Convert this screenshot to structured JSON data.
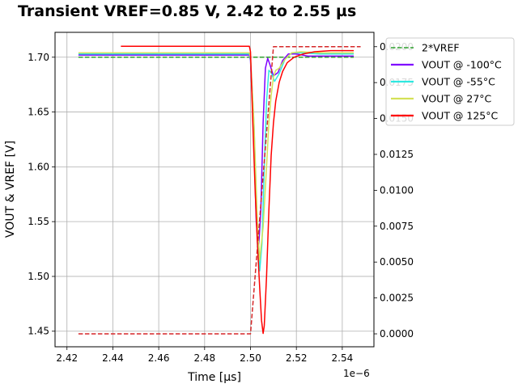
{
  "chart_data": {
    "type": "line",
    "title": "Transient VREF=0.85 V, 2.42 to 2.55 µs",
    "xlabel": "Time [µs]",
    "ylabel": "VOUT & VREF [V]",
    "x_offset_label": "1e−6",
    "xlim": [
      2.4148,
      2.5538
    ],
    "ylim": [
      1.4358,
      1.7227
    ],
    "y2lim": [
      -0.0009,
      0.021
    ],
    "x_ticks": [
      2.42,
      2.44,
      2.46,
      2.48,
      2.5,
      2.52,
      2.54
    ],
    "x_tick_labels": [
      "2.42",
      "2.44",
      "2.46",
      "2.48",
      "2.50",
      "2.52",
      "2.54"
    ],
    "y_ticks": [
      1.45,
      1.5,
      1.55,
      1.6,
      1.65,
      1.7
    ],
    "y_tick_labels": [
      "1.45",
      "1.50",
      "1.55",
      "1.60",
      "1.65",
      "1.70"
    ],
    "y2_ticks": [
      0.0,
      0.0025,
      0.005,
      0.0075,
      0.01,
      0.0125,
      0.015,
      0.0175,
      0.02
    ],
    "y2_tick_labels": [
      "0.0000",
      "0.0025",
      "0.0050",
      "0.0075",
      "0.0100",
      "0.0125",
      "0.0150",
      "0.0175",
      "0.0200"
    ],
    "grid": true,
    "legend_position": "upper-right-outside",
    "series": [
      {
        "name": "2*VREF",
        "color": "#2ca02c",
        "style": "dashed",
        "axis": "left",
        "legend_marker": "green-dash",
        "x": [
          2.425,
          2.545
        ],
        "y": [
          1.7,
          1.7
        ]
      },
      {
        "name": "VOUT @ -100°C",
        "color": "#7f00ff",
        "style": "solid",
        "axis": "left",
        "x": [
          2.425,
          2.4995,
          2.5,
          2.5012,
          2.5025,
          2.5035,
          2.5045,
          2.5055,
          2.5065,
          2.5075,
          2.5085,
          2.51,
          2.512,
          2.514,
          2.5165,
          2.52,
          2.525,
          2.535,
          2.545
        ],
        "y": [
          1.702,
          1.702,
          1.697,
          1.64,
          1.55,
          1.525,
          1.56,
          1.64,
          1.69,
          1.699,
          1.693,
          1.683,
          1.686,
          1.697,
          1.703,
          1.703,
          1.701,
          1.701,
          1.701
        ]
      },
      {
        "name": "VOUT @ -55°C",
        "color": "#2ee8e0",
        "style": "solid",
        "axis": "left",
        "x": [
          2.425,
          2.4995,
          2.5,
          2.5015,
          2.503,
          2.504,
          2.505,
          2.506,
          2.507,
          2.508,
          2.509,
          2.5105,
          2.5125,
          2.515,
          2.518,
          2.522,
          2.53,
          2.545
        ],
        "y": [
          1.703,
          1.703,
          1.699,
          1.64,
          1.54,
          1.505,
          1.53,
          1.6,
          1.66,
          1.688,
          1.686,
          1.678,
          1.685,
          1.698,
          1.704,
          1.704,
          1.703,
          1.703
        ]
      },
      {
        "name": "VOUT @ 27°C",
        "color": "#d4e157",
        "style": "solid",
        "axis": "left",
        "x": [
          2.425,
          2.4995,
          2.5,
          2.5015,
          2.503,
          2.504,
          2.5055,
          2.507,
          2.508,
          2.509,
          2.51,
          2.511,
          2.5125,
          2.515,
          2.518,
          2.522,
          2.53,
          2.545
        ],
        "y": [
          1.704,
          1.704,
          1.7,
          1.64,
          1.55,
          1.515,
          1.545,
          1.6,
          1.64,
          1.665,
          1.682,
          1.688,
          1.69,
          1.698,
          1.704,
          1.705,
          1.704,
          1.704
        ]
      },
      {
        "name": "VOUT @ 125°C",
        "color": "#ff0000",
        "style": "solid",
        "axis": "left",
        "x": [
          2.4435,
          2.4995,
          2.5,
          2.501,
          2.502,
          2.503,
          2.504,
          2.5048,
          2.5055,
          2.506,
          2.507,
          2.508,
          2.509,
          2.51,
          2.511,
          2.5125,
          2.514,
          2.516,
          2.519,
          2.523,
          2.528,
          2.535,
          2.545
        ],
        "y": [
          1.71,
          1.71,
          1.705,
          1.64,
          1.58,
          1.53,
          1.49,
          1.46,
          1.448,
          1.455,
          1.5,
          1.56,
          1.61,
          1.64,
          1.66,
          1.677,
          1.687,
          1.695,
          1.7,
          1.703,
          1.705,
          1.706,
          1.706
        ]
      },
      {
        "name": "",
        "color": "#d62728",
        "style": "dashed",
        "axis": "right",
        "legend": false,
        "x": [
          2.425,
          2.5,
          2.51,
          2.548
        ],
        "y": [
          0.0,
          0.0,
          0.02,
          0.02
        ]
      }
    ]
  }
}
